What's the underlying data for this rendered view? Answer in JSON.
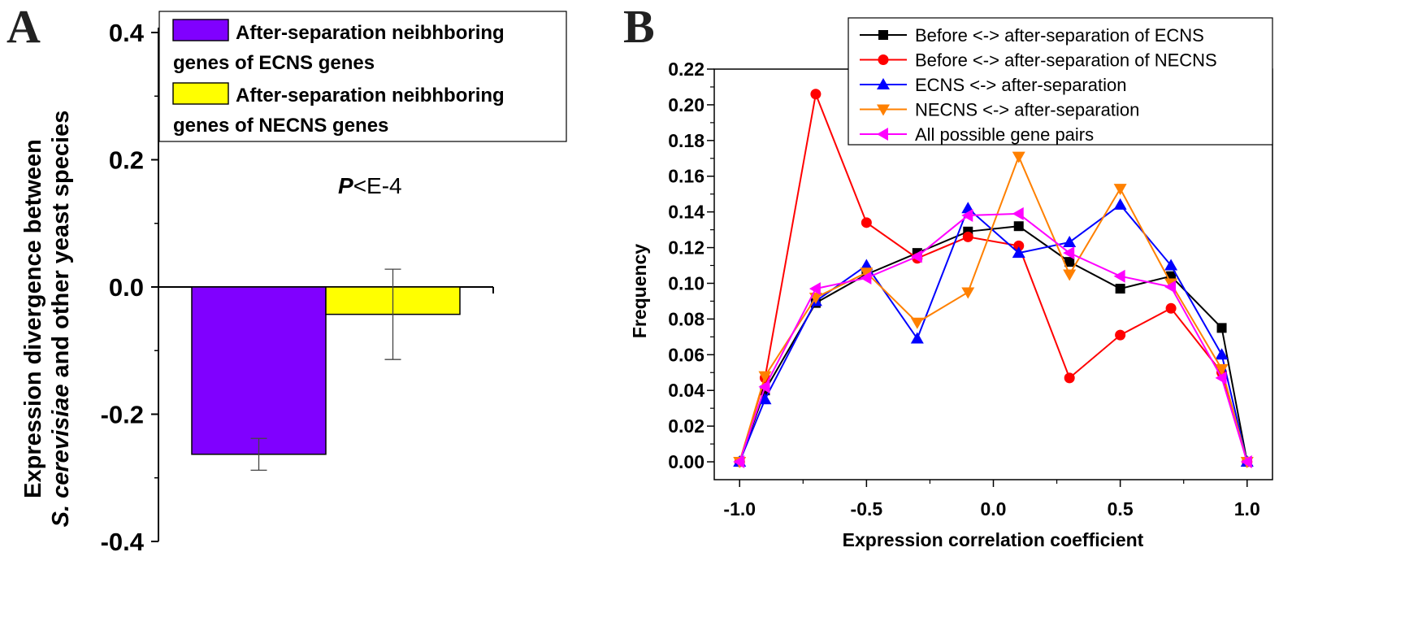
{
  "chart_data": [
    {
      "panel_label": "A",
      "type": "bar",
      "ylabel_line1": "Expression divergence between",
      "ylabel_line2_italic": "S. cerevisiae",
      "ylabel_line2_rest": " and other yeast species",
      "ylim": [
        -0.4,
        0.4
      ],
      "yticks": [
        {
          "value": -0.4,
          "label": "-0.4"
        },
        {
          "value": -0.2,
          "label": "-0.2"
        },
        {
          "value": 0.0,
          "label": "0.0"
        },
        {
          "value": 0.2,
          "label": "0.2"
        },
        {
          "value": 0.4,
          "label": "0.4"
        }
      ],
      "annotation_italic": "P",
      "annotation_rest": "<E-4",
      "bars": [
        {
          "value": -0.263,
          "error": 0.025,
          "color": "#8000ff",
          "legend_line1": "After-separation neibhboring",
          "legend_line2": "genes of ECNS genes"
        },
        {
          "value": -0.043,
          "error": 0.071,
          "color": "#ffff00",
          "legend_line1": "After-separation neibhboring",
          "legend_line2": "genes of NECNS genes"
        }
      ]
    },
    {
      "panel_label": "B",
      "type": "line",
      "xlabel": "Expression correlation coefficient",
      "ylabel": "Frequency",
      "xlim": [
        -1.1,
        1.1
      ],
      "ylim": [
        -0.01,
        0.22
      ],
      "xticks": [
        {
          "value": -1.0,
          "label": "-1.0"
        },
        {
          "value": -0.5,
          "label": "-0.5"
        },
        {
          "value": 0.0,
          "label": "0.0"
        },
        {
          "value": 0.5,
          "label": "0.5"
        },
        {
          "value": 1.0,
          "label": "1.0"
        }
      ],
      "yticks": [
        {
          "value": 0.0,
          "label": "0.00"
        },
        {
          "value": 0.02,
          "label": "0.02"
        },
        {
          "value": 0.04,
          "label": "0.04"
        },
        {
          "value": 0.06,
          "label": "0.06"
        },
        {
          "value": 0.08,
          "label": "0.08"
        },
        {
          "value": 0.1,
          "label": "0.10"
        },
        {
          "value": 0.12,
          "label": "0.12"
        },
        {
          "value": 0.14,
          "label": "0.14"
        },
        {
          "value": 0.16,
          "label": "0.16"
        },
        {
          "value": 0.18,
          "label": "0.18"
        },
        {
          "value": 0.2,
          "label": "0.20"
        },
        {
          "value": 0.22,
          "label": "0.22"
        }
      ],
      "x": [
        -1.0,
        -0.9,
        -0.7,
        -0.5,
        -0.3,
        -0.1,
        0.1,
        0.3,
        0.5,
        0.7,
        0.9,
        1.0
      ],
      "series": [
        {
          "name": "Before <-> after-separation of ECNS",
          "color": "#000000",
          "marker": "square",
          "values": [
            0.0,
            0.04,
            0.089,
            0.105,
            0.117,
            0.129,
            0.132,
            0.112,
            0.097,
            0.104,
            0.075,
            0.0
          ]
        },
        {
          "name": "Before <-> after-separation of NECNS",
          "color": "#ff0000",
          "marker": "circle",
          "values": [
            0.0,
            0.047,
            0.206,
            0.134,
            0.114,
            0.126,
            0.121,
            0.047,
            0.071,
            0.086,
            0.05,
            0.0
          ]
        },
        {
          "name": "ECNS <-> after-separation",
          "color": "#0000ff",
          "marker": "triangle-up",
          "values": [
            0.0,
            0.035,
            0.09,
            0.11,
            0.069,
            0.142,
            0.117,
            0.123,
            0.144,
            0.11,
            0.06,
            0.0
          ]
        },
        {
          "name": "NECNS <-> after-separation",
          "color": "#ff8000",
          "marker": "triangle-down",
          "values": [
            0.0,
            0.048,
            0.092,
            0.106,
            0.078,
            0.095,
            0.171,
            0.105,
            0.153,
            0.1,
            0.052,
            0.0
          ]
        },
        {
          "name": "All possible gene pairs",
          "color": "#ff00ff",
          "marker": "triangle-left",
          "values": [
            0.0,
            0.042,
            0.097,
            0.103,
            0.115,
            0.138,
            0.139,
            0.117,
            0.104,
            0.098,
            0.047,
            0.0
          ]
        }
      ]
    }
  ]
}
